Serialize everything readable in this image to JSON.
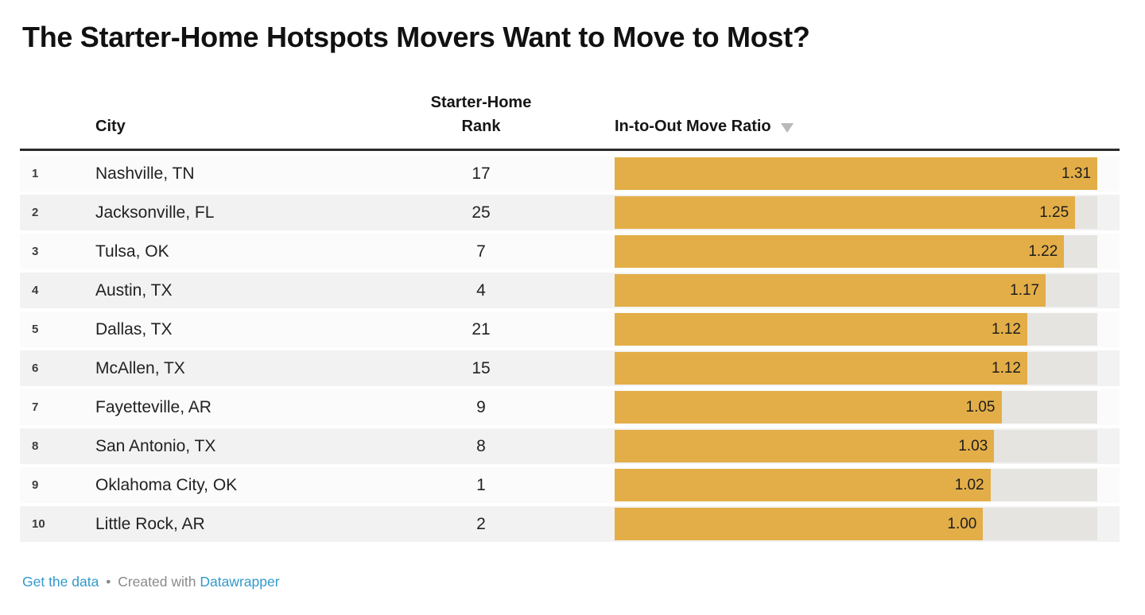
{
  "title": "The Starter-Home Hotspots Movers Want to Move to Most?",
  "header": {
    "city": "City",
    "starter_home_line1": "Starter-Home",
    "starter_home_line2": "Rank",
    "ratio": "In-to-Out Move Ratio",
    "sort_direction": "desc"
  },
  "footer": {
    "get_data_label": "Get the data",
    "separator": "•",
    "created_with": "Created with",
    "brand": "Datawrapper"
  },
  "colors": {
    "bar": "#e3ae48",
    "bar_track": "#e5e4e1",
    "row_odd": "#fbfbfb",
    "row_even": "#f2f2f2",
    "link": "#3399cc",
    "header_rule": "#2b2b2b",
    "text": "#1d1d1d",
    "muted": "#8a8a8a",
    "sort_arrow": "#b9b9b9"
  },
  "chart_data": {
    "type": "bar",
    "title": "The Starter-Home Hotspots Movers Want to Move to Most?",
    "columns": [
      "",
      "City",
      "Starter-Home Rank",
      "In-to-Out Move Ratio"
    ],
    "sort": {
      "column": "In-to-Out Move Ratio",
      "direction": "desc"
    },
    "bar_axis": {
      "min": 0,
      "max": 1.31
    },
    "rows": [
      {
        "rank": "1",
        "city": "Nashville, TN",
        "starter_home_rank": "17",
        "ratio": 1.31
      },
      {
        "rank": "2",
        "city": "Jacksonville, FL",
        "starter_home_rank": "25",
        "ratio": 1.25
      },
      {
        "rank": "3",
        "city": "Tulsa, OK",
        "starter_home_rank": "7",
        "ratio": 1.22
      },
      {
        "rank": "4",
        "city": "Austin, TX",
        "starter_home_rank": "4",
        "ratio": 1.17
      },
      {
        "rank": "5",
        "city": "Dallas, TX",
        "starter_home_rank": "21",
        "ratio": 1.12
      },
      {
        "rank": "6",
        "city": "McAllen, TX",
        "starter_home_rank": "15",
        "ratio": 1.12
      },
      {
        "rank": "7",
        "city": "Fayetteville, AR",
        "starter_home_rank": "9",
        "ratio": 1.05
      },
      {
        "rank": "8",
        "city": "San Antonio, TX",
        "starter_home_rank": "8",
        "ratio": 1.03
      },
      {
        "rank": "9",
        "city": "Oklahoma City, OK",
        "starter_home_rank": "1",
        "ratio": 1.02
      },
      {
        "rank": "10",
        "city": "Little Rock, AR",
        "starter_home_rank": "2",
        "ratio": 1.0
      }
    ]
  }
}
